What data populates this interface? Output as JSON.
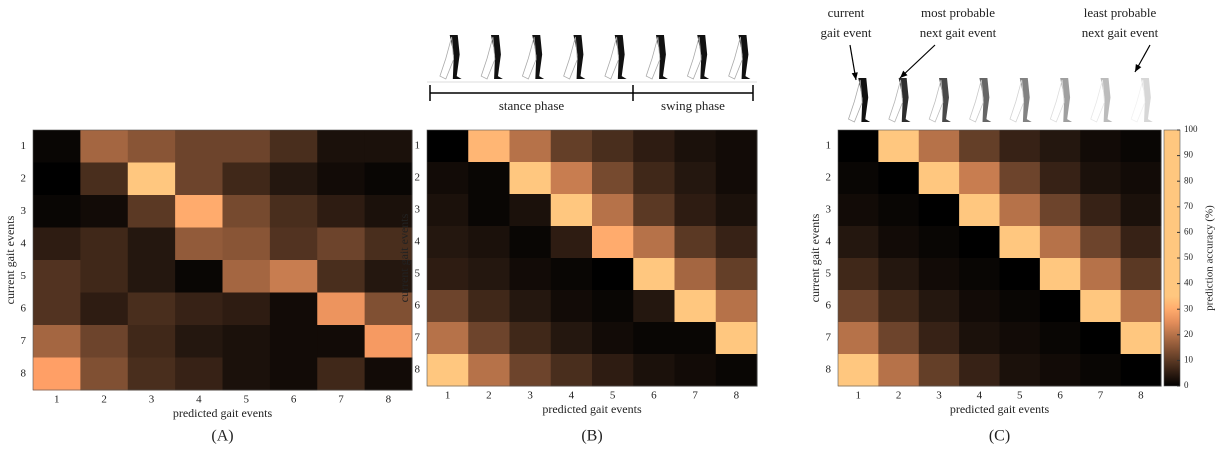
{
  "chart_data": [
    {
      "type": "heatmap",
      "caption": "(A)",
      "xlabel": "predicted gait events",
      "ylabel": "current gait events",
      "x_categories": [
        "1",
        "2",
        "3",
        "4",
        "5",
        "6",
        "7",
        "8"
      ],
      "y_categories": [
        "1",
        "2",
        "3",
        "4",
        "5",
        "6",
        "7",
        "8"
      ],
      "values": [
        [
          1,
          18,
          15,
          12,
          12,
          8,
          3,
          3
        ],
        [
          0,
          8,
          40,
          12,
          7,
          4,
          2,
          1
        ],
        [
          1,
          2,
          10,
          30,
          13,
          8,
          5,
          3
        ],
        [
          5,
          7,
          4,
          16,
          15,
          9,
          12,
          8
        ],
        [
          9,
          7,
          4,
          1,
          18,
          22,
          8,
          4
        ],
        [
          9,
          5,
          8,
          6,
          5,
          2,
          26,
          14
        ],
        [
          18,
          12,
          7,
          4,
          3,
          2,
          2,
          27
        ],
        [
          28,
          14,
          8,
          6,
          3,
          2,
          7,
          2
        ]
      ]
    },
    {
      "type": "heatmap",
      "caption": "(B)",
      "xlabel": "predicted gait events",
      "ylabel": "current gait events",
      "x_categories": [
        "1",
        "2",
        "3",
        "4",
        "5",
        "6",
        "7",
        "8"
      ],
      "y_categories": [
        "1",
        "2",
        "3",
        "4",
        "5",
        "6",
        "7",
        "8"
      ],
      "annotations": [
        "stance phase",
        "swing phase"
      ],
      "values": [
        [
          0,
          32,
          20,
          11,
          8,
          5,
          3,
          2
        ],
        [
          2,
          1,
          45,
          22,
          13,
          7,
          4,
          2
        ],
        [
          3,
          1,
          3,
          48,
          20,
          10,
          5,
          3
        ],
        [
          4,
          3,
          1,
          5,
          30,
          20,
          10,
          6
        ],
        [
          5,
          4,
          2,
          1,
          0,
          40,
          18,
          11
        ],
        [
          12,
          7,
          4,
          2,
          1,
          4,
          40,
          20
        ],
        [
          20,
          12,
          7,
          4,
          2,
          1,
          1,
          50
        ],
        [
          40,
          20,
          12,
          8,
          5,
          3,
          2,
          1
        ]
      ]
    },
    {
      "type": "heatmap",
      "caption": "(C)",
      "xlabel": "predicted gait events",
      "ylabel": "current gait events",
      "x_categories": [
        "1",
        "2",
        "3",
        "4",
        "5",
        "6",
        "7",
        "8"
      ],
      "y_categories": [
        "1",
        "2",
        "3",
        "4",
        "5",
        "6",
        "7",
        "8"
      ],
      "annotations": [
        [
          "current",
          "gait event"
        ],
        [
          "most probable",
          "next gait event"
        ],
        [
          "least probable",
          "next gait event"
        ]
      ],
      "colorbar": {
        "label": "prediction accuracy (%)",
        "lim": [
          0,
          100
        ],
        "ticks": [
          0,
          10,
          20,
          30,
          40,
          50,
          60,
          70,
          80,
          90,
          100
        ]
      },
      "values": [
        [
          0,
          60,
          20,
          11,
          6,
          4,
          2,
          1
        ],
        [
          1,
          0,
          55,
          22,
          12,
          6,
          3,
          2
        ],
        [
          2,
          1,
          0,
          50,
          20,
          12,
          6,
          3
        ],
        [
          4,
          2,
          1,
          0,
          52,
          20,
          12,
          6
        ],
        [
          7,
          4,
          2,
          1,
          0,
          55,
          20,
          10
        ],
        [
          12,
          7,
          4,
          2,
          1,
          0,
          50,
          20
        ],
        [
          20,
          12,
          6,
          3,
          2,
          1,
          0,
          55
        ],
        [
          55,
          20,
          11,
          6,
          3,
          2,
          1,
          0
        ]
      ]
    }
  ]
}
